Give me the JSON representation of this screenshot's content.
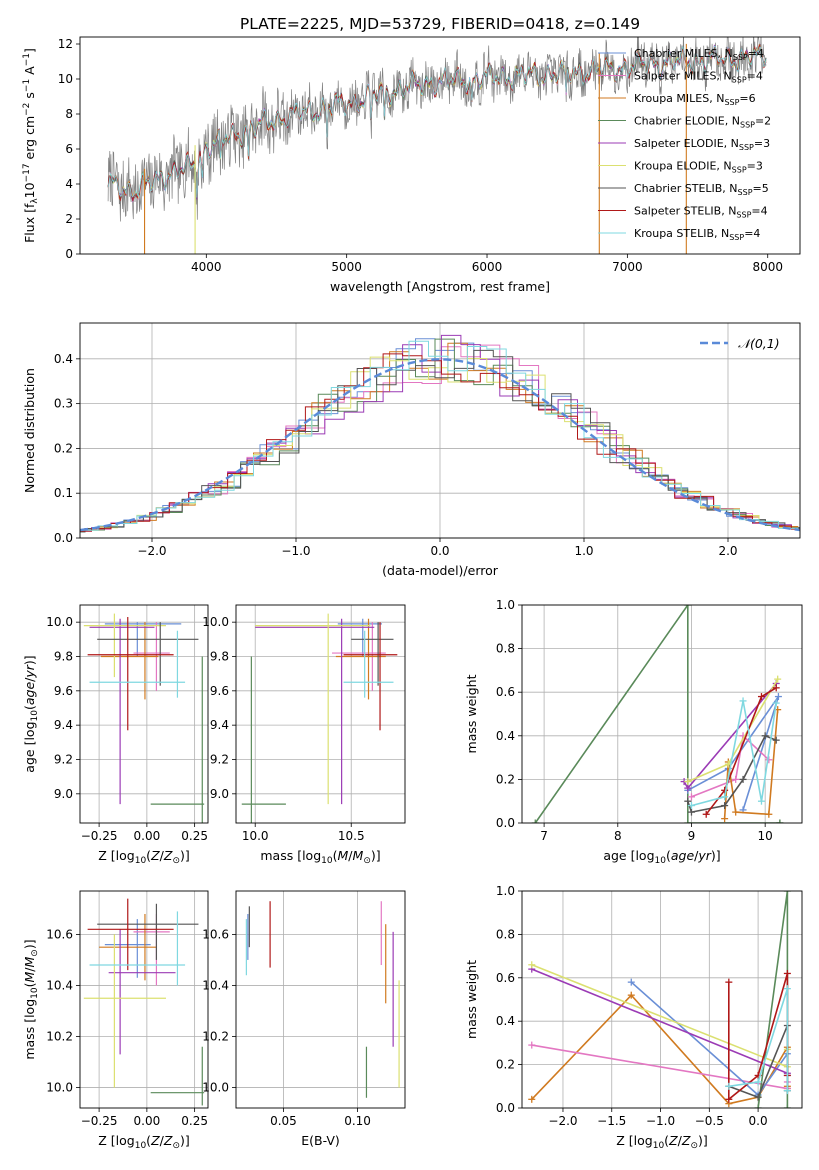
{
  "title": "PLATE=2225, MJD=53729, FIBERID=0418, z=0.149",
  "colors": {
    "Chabrier MILES": "#6a8fd6",
    "Salpeter MILES": "#e377c2",
    "Kroupa MILES": "#d07a20",
    "Chabrier ELODIE": "#5a8a5a",
    "Salpeter ELODIE": "#9b3bb5",
    "Kroupa ELODIE": "#dbe070",
    "Chabrier STELIB": "#555555",
    "Salpeter STELIB": "#b01818",
    "Kroupa STELIB": "#7fd8e0",
    "spectrum": "#808080",
    "normal": "#5a8ad8"
  },
  "chart_data": [
    {
      "id": "spectrum",
      "type": "line",
      "xlabel": "wavelength [Angstrom, rest frame]",
      "ylabel": "Flux [f_λ 10^-17 erg cm^-2 s^-1 A^-1]",
      "xlim": [
        3100,
        8230
      ],
      "ylim": [
        0,
        12.4
      ],
      "xticks": [
        4000,
        5000,
        6000,
        7000,
        8000
      ],
      "yticks": [
        0,
        2,
        4,
        6,
        8,
        10,
        12
      ],
      "legend_position": "top-right",
      "legend": [
        "Chabrier MILES, N_SSP=4",
        "Salpeter MILES, N_SSP=4",
        "Kroupa MILES, N_SSP=6",
        "Chabrier ELODIE, N_SSP=2",
        "Salpeter ELODIE, N_SSP=3",
        "Kroupa ELODIE, N_SSP=3",
        "Chabrier STELIB, N_SSP=5",
        "Salpeter STELIB, N_SSP=4",
        "Kroupa STELIB, N_SSP=4"
      ],
      "continuum": {
        "x": [
          3300,
          3500,
          3700,
          3900,
          4000,
          4200,
          4500,
          4800,
          5000,
          5300,
          5600,
          5900,
          6200,
          6500,
          6800,
          7100,
          7400,
          7800,
          8000
        ],
        "y": [
          4.0,
          3.6,
          4.5,
          5.0,
          6.1,
          6.8,
          7.7,
          8.3,
          8.6,
          9.3,
          9.8,
          10.0,
          10.2,
          10.3,
          10.5,
          10.8,
          11.0,
          11.2,
          11.3
        ]
      },
      "drops": [
        3560,
        3920,
        6800,
        7420
      ]
    },
    {
      "id": "residuals",
      "type": "line",
      "xlabel": "(data-model)/error",
      "ylabel": "Normed distribution",
      "xlim": [
        -2.5,
        2.5
      ],
      "ylim": [
        0,
        0.48
      ],
      "xticks": [
        -2,
        -1,
        0,
        1,
        2
      ],
      "yticks": [
        0.0,
        0.1,
        0.2,
        0.3,
        0.4
      ],
      "legend_position": "top-right",
      "legend": [
        "𝒩(0,1)"
      ],
      "grid": true
    },
    {
      "id": "age_vs_Z",
      "type": "scatter",
      "xlabel": "Z [log10(Z/Z⊙)]",
      "ylabel": "age [log10(age/yr)]",
      "xlim": [
        -0.35,
        0.32
      ],
      "ylim": [
        8.83,
        10.1
      ],
      "xticks": [
        -0.25,
        0.0,
        0.25
      ],
      "yticks": [
        9.0,
        9.2,
        9.4,
        9.6,
        9.8,
        10.0
      ],
      "grid": true,
      "crosses": [
        {
          "series": "Chabrier MILES",
          "x": [
            -0.22,
            0.18
          ],
          "y": [
            9.99,
            9.99
          ],
          "vx": -0.05,
          "vy": [
            9.8,
            10.0
          ]
        },
        {
          "series": "Salpeter MILES",
          "x": [
            -0.07,
            0.12
          ],
          "y": [
            9.82,
            9.82
          ],
          "vx": 0.05,
          "vy": [
            9.6,
            10.0
          ]
        },
        {
          "series": "Kroupa MILES",
          "x": [
            -0.24,
            0.06
          ],
          "y": [
            9.8,
            9.8
          ],
          "vx": -0.01,
          "vy": [
            9.55,
            10.0
          ]
        },
        {
          "series": "Chabrier ELODIE",
          "x": [
            0.02,
            0.3
          ],
          "y": [
            8.94,
            8.94
          ],
          "vx": 0.29,
          "vy": [
            8.83,
            9.8
          ]
        },
        {
          "series": "Salpeter ELODIE",
          "x": [
            -0.3,
            0.04
          ],
          "y": [
            9.97,
            9.97
          ],
          "vx": -0.14,
          "vy": [
            8.94,
            10.02
          ]
        },
        {
          "series": "Kroupa ELODIE",
          "x": [
            -0.33,
            0.1
          ],
          "y": [
            9.98,
            9.98
          ],
          "vx": -0.17,
          "vy": [
            9.68,
            10.05
          ]
        },
        {
          "series": "Chabrier STELIB",
          "x": [
            -0.26,
            0.27
          ],
          "y": [
            9.9,
            9.9
          ],
          "vx": 0.07,
          "vy": [
            9.63,
            10.0
          ]
        },
        {
          "series": "Salpeter STELIB",
          "x": [
            -0.31,
            0.14
          ],
          "y": [
            9.81,
            9.81
          ],
          "vx": -0.1,
          "vy": [
            9.37,
            10.03
          ]
        },
        {
          "series": "Kroupa STELIB",
          "x": [
            -0.3,
            0.2
          ],
          "y": [
            9.65,
            9.65
          ],
          "vx": 0.16,
          "vy": [
            9.56,
            9.95
          ]
        }
      ]
    },
    {
      "id": "age_vs_mass",
      "type": "scatter",
      "xlabel": "mass [log10(M/M⊙)]",
      "ylabel": "",
      "xlim": [
        9.9,
        10.78
      ],
      "ylim": [
        8.83,
        10.1
      ],
      "xticks": [
        10.0,
        10.5
      ],
      "yticks": [
        9.0,
        9.2,
        9.4,
        9.6,
        9.8,
        10.0
      ],
      "grid": true,
      "crosses": [
        {
          "series": "Chabrier MILES",
          "x": [
            10.43,
            10.66
          ],
          "y": [
            9.99,
            9.99
          ],
          "vx": 10.56,
          "vy": [
            9.8,
            10.02
          ]
        },
        {
          "series": "Salpeter MILES",
          "x": [
            10.4,
            10.68
          ],
          "y": [
            9.82,
            9.82
          ],
          "vx": 10.61,
          "vy": [
            9.6,
            10.0
          ]
        },
        {
          "series": "Kroupa MILES",
          "x": [
            10.42,
            10.68
          ],
          "y": [
            9.8,
            9.8
          ],
          "vx": 10.59,
          "vy": [
            9.55,
            10.02
          ]
        },
        {
          "series": "Chabrier ELODIE",
          "x": [
            9.93,
            10.16
          ],
          "y": [
            8.94,
            8.94
          ],
          "vx": 9.98,
          "vy": [
            8.83,
            9.8
          ]
        },
        {
          "series": "Salpeter ELODIE",
          "x": [
            10.0,
            10.62
          ],
          "y": [
            9.97,
            9.97
          ],
          "vx": 10.45,
          "vy": [
            8.94,
            10.02
          ]
        },
        {
          "series": "Kroupa ELODIE",
          "x": [
            10.0,
            10.6
          ],
          "y": [
            9.98,
            9.98
          ],
          "vx": 10.38,
          "vy": [
            8.94,
            10.05
          ]
        },
        {
          "series": "Chabrier STELIB",
          "x": [
            10.5,
            10.72
          ],
          "y": [
            9.9,
            9.9
          ],
          "vx": 10.64,
          "vy": [
            9.63,
            10.0
          ]
        },
        {
          "series": "Salpeter STELIB",
          "x": [
            10.46,
            10.74
          ],
          "y": [
            9.81,
            9.81
          ],
          "vx": 10.65,
          "vy": [
            9.37,
            10.0
          ]
        },
        {
          "series": "Kroupa STELIB",
          "x": [
            10.46,
            10.72
          ],
          "y": [
            9.65,
            9.65
          ],
          "vx": 10.57,
          "vy": [
            9.56,
            9.95
          ]
        }
      ]
    },
    {
      "id": "massweight_vs_age",
      "type": "line",
      "xlabel": "age [log10(age/yr)]",
      "ylabel": "mass weight",
      "xlim": [
        6.7,
        10.5
      ],
      "ylim": [
        0,
        1.0
      ],
      "xticks": [
        7,
        8,
        9,
        10
      ],
      "yticks": [
        0.0,
        0.2,
        0.4,
        0.6,
        0.8,
        1.0
      ],
      "grid": true,
      "series": [
        {
          "name": "Chabrier ELODIE",
          "x": [
            6.88,
            8.95,
            8.95,
            10.2,
            10.2
          ],
          "y": [
            0.0,
            1.0,
            0.0,
            0.0,
            0.0
          ]
        },
        {
          "name": "Chabrier MILES",
          "x": [
            8.95,
            9.5,
            10.18,
            9.7
          ],
          "y": [
            0.15,
            0.25,
            0.58,
            0.06
          ]
        },
        {
          "name": "Salpeter MILES",
          "x": [
            9.0,
            9.6,
            9.7,
            10.05
          ],
          "y": [
            0.12,
            0.2,
            0.4,
            0.29
          ]
        },
        {
          "name": "Kroupa MILES",
          "x": [
            9.45,
            9.5,
            9.6,
            10.05,
            10.17
          ],
          "y": [
            0.02,
            0.28,
            0.05,
            0.04,
            0.52
          ]
        },
        {
          "name": "Salpeter ELODIE",
          "x": [
            8.9,
            8.95,
            10.15
          ],
          "y": [
            0.19,
            0.16,
            0.64
          ]
        },
        {
          "name": "Kroupa ELODIE",
          "x": [
            8.95,
            9.5,
            10.17
          ],
          "y": [
            0.19,
            0.27,
            0.66
          ]
        },
        {
          "name": "Chabrier STELIB",
          "x": [
            8.95,
            9.0,
            9.45,
            9.7,
            10.0,
            10.15
          ],
          "y": [
            0.1,
            0.05,
            0.08,
            0.2,
            0.4,
            0.38
          ]
        },
        {
          "name": "Salpeter STELIB",
          "x": [
            9.2,
            9.45,
            9.95,
            10.15
          ],
          "y": [
            0.04,
            0.15,
            0.58,
            0.62
          ]
        },
        {
          "name": "Kroupa STELIB",
          "x": [
            9.0,
            9.45,
            9.7,
            9.95,
            10.15
          ],
          "y": [
            0.08,
            0.12,
            0.56,
            0.1,
            0.55
          ]
        }
      ]
    },
    {
      "id": "mass_vs_Z",
      "type": "scatter",
      "xlabel": "Z [log10(Z/Z⊙)]",
      "ylabel": "mass [log10(M/M⊙)]",
      "xlim": [
        -0.35,
        0.32
      ],
      "ylim": [
        9.92,
        10.77
      ],
      "xticks": [
        -0.25,
        0.0,
        0.25
      ],
      "yticks": [
        10.0,
        10.2,
        10.4,
        10.6
      ],
      "grid": true,
      "crosses": [
        {
          "series": "Chabrier MILES",
          "x": [
            -0.22,
            0.02
          ],
          "y": [
            10.56,
            10.56
          ],
          "vx": -0.05,
          "vy": [
            10.43,
            10.66
          ]
        },
        {
          "series": "Salpeter MILES",
          "x": [
            -0.07,
            0.12
          ],
          "y": [
            10.61,
            10.61
          ],
          "vx": 0.05,
          "vy": [
            10.4,
            10.68
          ]
        },
        {
          "series": "Kroupa MILES",
          "x": [
            -0.25,
            0.05
          ],
          "y": [
            10.55,
            10.55
          ],
          "vx": -0.01,
          "vy": [
            10.42,
            10.68
          ]
        },
        {
          "series": "Chabrier ELODIE",
          "x": [
            0.02,
            0.3
          ],
          "y": [
            9.98,
            9.98
          ],
          "vx": 0.29,
          "vy": [
            9.93,
            10.16
          ]
        },
        {
          "series": "Salpeter ELODIE",
          "x": [
            -0.2,
            0.15
          ],
          "y": [
            10.45,
            10.45
          ],
          "vx": -0.14,
          "vy": [
            10.13,
            10.62
          ]
        },
        {
          "series": "Kroupa ELODIE",
          "x": [
            -0.33,
            0.1
          ],
          "y": [
            10.35,
            10.35
          ],
          "vx": -0.17,
          "vy": [
            10.0,
            10.6
          ]
        },
        {
          "series": "Chabrier STELIB",
          "x": [
            -0.26,
            0.27
          ],
          "y": [
            10.64,
            10.64
          ],
          "vx": 0.05,
          "vy": [
            10.5,
            10.72
          ]
        },
        {
          "series": "Salpeter STELIB",
          "x": [
            -0.31,
            0.14
          ],
          "y": [
            10.62,
            10.62
          ],
          "vx": -0.1,
          "vy": [
            10.46,
            10.74
          ]
        },
        {
          "series": "Kroupa STELIB",
          "x": [
            -0.3,
            0.2
          ],
          "y": [
            10.48,
            10.48
          ],
          "vx": 0.16,
          "vy": [
            10.4,
            10.69
          ]
        }
      ]
    },
    {
      "id": "mass_vs_ebv",
      "type": "scatter",
      "xlabel": "E(B-V)",
      "ylabel": "",
      "xlim": [
        0.018,
        0.132
      ],
      "ylim": [
        9.92,
        10.77
      ],
      "xticks": [
        0.05,
        0.1
      ],
      "yticks": [
        10.0,
        10.2,
        10.4,
        10.6
      ],
      "grid": true,
      "bars": [
        {
          "series": "Chabrier MILES",
          "x": 0.026,
          "y": [
            10.5,
            10.68
          ]
        },
        {
          "series": "Salpeter MILES",
          "x": 0.116,
          "y": [
            10.48,
            10.73
          ]
        },
        {
          "series": "Kroupa MILES",
          "x": 0.119,
          "y": [
            10.33,
            10.64
          ]
        },
        {
          "series": "Chabrier ELODIE",
          "x": 0.106,
          "y": [
            9.96,
            10.16
          ]
        },
        {
          "series": "Salpeter ELODIE",
          "x": 0.124,
          "y": [
            10.16,
            10.61
          ]
        },
        {
          "series": "Kroupa ELODIE",
          "x": 0.128,
          "y": [
            10.0,
            10.42
          ]
        },
        {
          "series": "Chabrier STELIB",
          "x": 0.027,
          "y": [
            10.55,
            10.71
          ]
        },
        {
          "series": "Salpeter STELIB",
          "x": 0.041,
          "y": [
            10.47,
            10.73
          ]
        },
        {
          "series": "Kroupa STELIB",
          "x": 0.025,
          "y": [
            10.44,
            10.66
          ]
        }
      ]
    },
    {
      "id": "massweight_vs_Z",
      "type": "line",
      "xlabel": "Z [log10(Z/Z⊙)]",
      "ylabel": "mass weight",
      "xlim": [
        -2.42,
        0.45
      ],
      "ylim": [
        0,
        1.0
      ],
      "xticks": [
        -2.0,
        -1.5,
        -1.0,
        -0.5,
        0.0
      ],
      "yticks": [
        0.0,
        0.2,
        0.4,
        0.6,
        0.8,
        1.0
      ],
      "grid": true,
      "series": [
        {
          "name": "Kroupa MILES",
          "x": [
            -2.32,
            -1.3,
            -0.3,
            0.0,
            0.3,
            0.3,
            0.3
          ],
          "y": [
            0.04,
            0.52,
            0.02,
            0.05,
            0.28,
            0.1,
            0.09
          ]
        },
        {
          "name": "Salpeter MILES",
          "x": [
            -2.32,
            0.3,
            0.3
          ],
          "y": [
            0.29,
            0.09,
            0.12
          ]
        },
        {
          "name": "Chabrier MILES",
          "x": [
            -1.3,
            0.0,
            0.3,
            0.3
          ],
          "y": [
            0.58,
            0.06,
            0.25,
            0.15
          ]
        },
        {
          "name": "Salpeter ELODIE",
          "x": [
            -2.32,
            0.3
          ],
          "y": [
            0.64,
            0.16
          ]
        },
        {
          "name": "Kroupa ELODIE",
          "x": [
            -2.32,
            0.3,
            0.3
          ],
          "y": [
            0.66,
            0.19,
            0.27
          ]
        },
        {
          "name": "Chabrier ELODIE",
          "x": [
            0.0,
            0.3,
            0.3
          ],
          "y": [
            0.0,
            1.0,
            0.0
          ]
        },
        {
          "name": "Chabrier STELIB",
          "x": [
            -0.3,
            0.0,
            0.3,
            0.3
          ],
          "y": [
            0.1,
            0.05,
            0.38,
            0.08
          ]
        },
        {
          "name": "Salpeter STELIB",
          "x": [
            -0.3,
            -0.3,
            0.0,
            0.3,
            0.3
          ],
          "y": [
            0.58,
            0.04,
            0.15,
            0.62,
            0.15
          ]
        },
        {
          "name": "Kroupa STELIB",
          "x": [
            -0.3,
            0.0,
            0.3,
            0.3
          ],
          "y": [
            0.1,
            0.12,
            0.55,
            0.08
          ]
        }
      ]
    }
  ]
}
